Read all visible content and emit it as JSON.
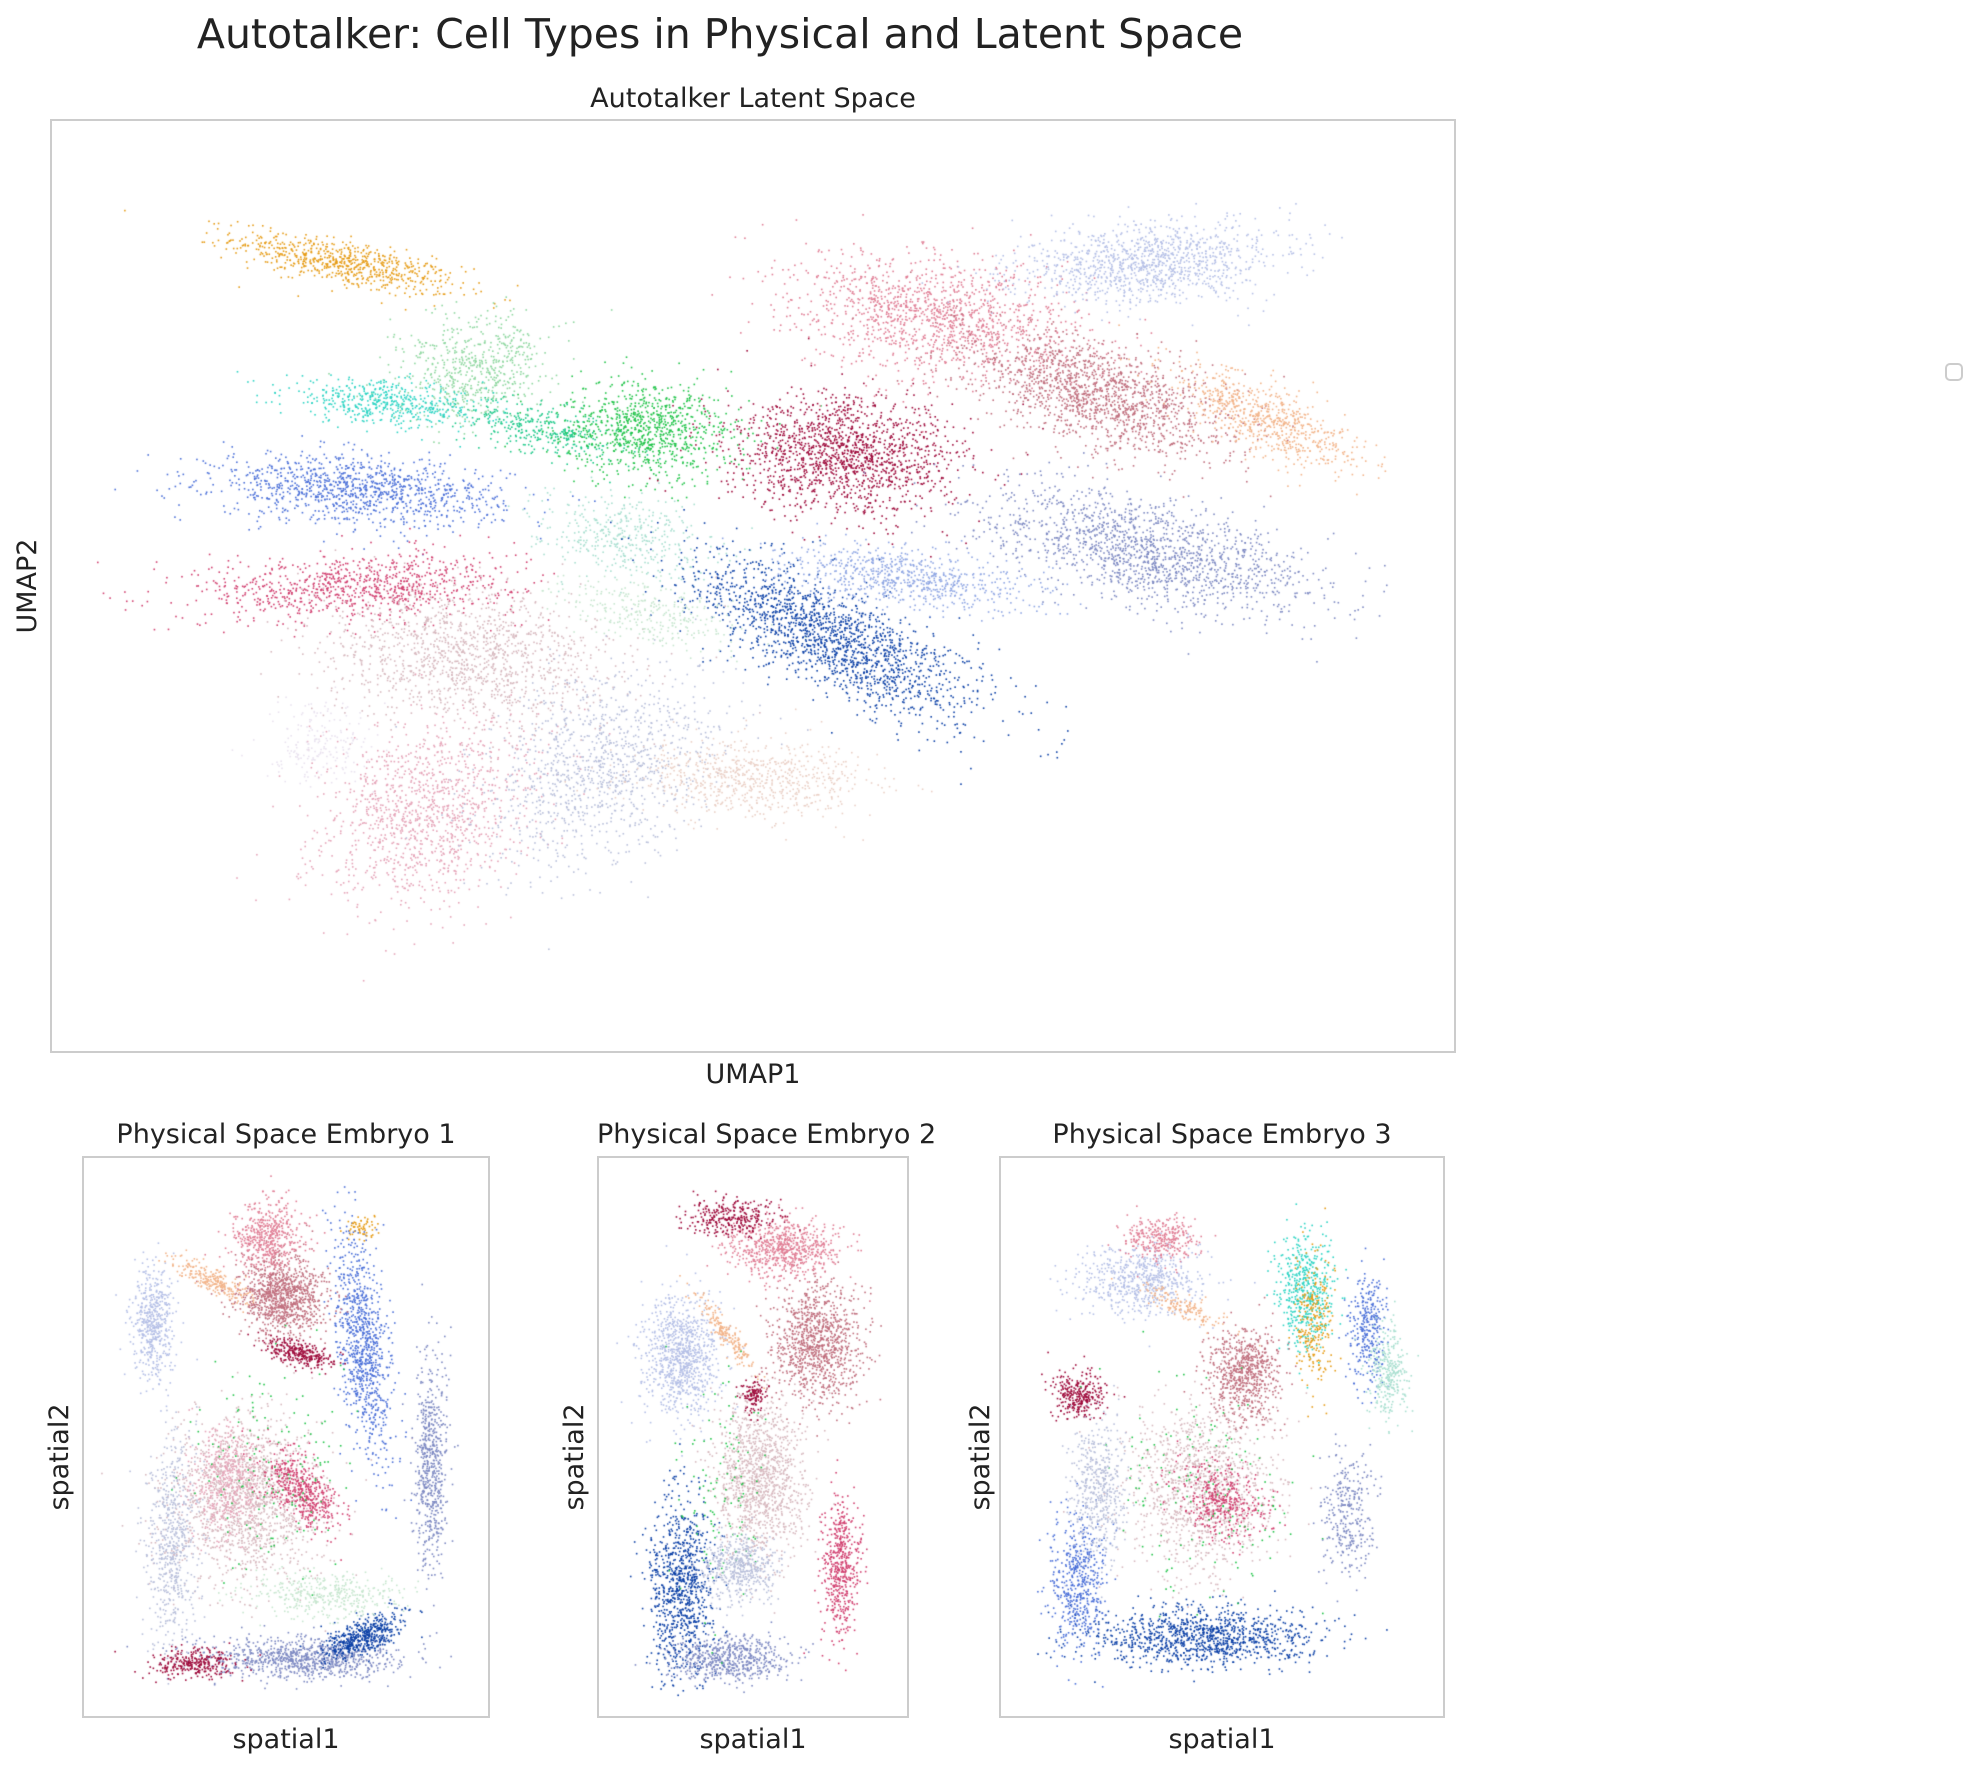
{
  "figure": {
    "title": "Autotalker: Cell Types in Physical and Latent Space"
  },
  "chart_data": [
    {
      "type": "scatter",
      "title": "Autotalker Latent Space",
      "xlabel": "UMAP1",
      "ylabel": "UMAP2",
      "grid": false,
      "ticks": false,
      "legend": "right, empty",
      "xlim": [
        0,
        100
      ],
      "ylim": [
        0,
        100
      ],
      "clusters": [
        {
          "color": "#e69c17",
          "center": [
            19,
            87
          ],
          "spread": [
            8,
            2.2
          ],
          "angle": -18,
          "count": 700
        },
        {
          "color": "#8fd7a0",
          "center": [
            29,
            75
          ],
          "spread": [
            5,
            6
          ],
          "angle": -35,
          "count": 600
        },
        {
          "color": "#1ec98a",
          "center": [
            34,
            68
          ],
          "spread": [
            6,
            2.5
          ],
          "angle": -20,
          "count": 350
        },
        {
          "color": "#22c44a",
          "center": [
            42,
            68
          ],
          "spread": [
            6,
            5
          ],
          "angle": -15,
          "count": 900
        },
        {
          "color": "#2dd4c4",
          "center": [
            22,
            71
          ],
          "spread": [
            7,
            2.2
          ],
          "angle": -8,
          "count": 500
        },
        {
          "color": "#4a6fd8",
          "center": [
            20,
            61
          ],
          "spread": [
            10,
            3.5
          ],
          "angle": -6,
          "count": 1100
        },
        {
          "color": "#d13f6f",
          "center": [
            20,
            50
          ],
          "spread": [
            11,
            3.5
          ],
          "angle": 4,
          "count": 900
        },
        {
          "color": "#a9dfd0",
          "center": [
            40,
            56
          ],
          "spread": [
            6,
            4
          ],
          "angle": -20,
          "count": 400
        },
        {
          "color": "#0a3fa6",
          "center": [
            56,
            44
          ],
          "spread": [
            12,
            4.5
          ],
          "angle": -38,
          "count": 1700
        },
        {
          "color": "#9e0a3b",
          "center": [
            57,
            65
          ],
          "spread": [
            8,
            6
          ],
          "angle": -10,
          "count": 1500
        },
        {
          "color": "#e07e95",
          "center": [
            64,
            81
          ],
          "spread": [
            10,
            6
          ],
          "angle": -15,
          "count": 1300
        },
        {
          "color": "#b4bfe6",
          "center": [
            80,
            87
          ],
          "spread": [
            9,
            4
          ],
          "angle": 8,
          "count": 1100
        },
        {
          "color": "#c06f7e",
          "center": [
            76,
            72
          ],
          "spread": [
            10,
            5
          ],
          "angle": -28,
          "count": 1500
        },
        {
          "color": "#f2b48a",
          "center": [
            89,
            69
          ],
          "spread": [
            8,
            3
          ],
          "angle": -38,
          "count": 700
        },
        {
          "color": "#7d89c2",
          "center": [
            80,
            54
          ],
          "spread": [
            12,
            5
          ],
          "angle": -20,
          "count": 1500
        },
        {
          "color": "#8fa6e3",
          "center": [
            62,
            51
          ],
          "spread": [
            9,
            3
          ],
          "angle": -12,
          "count": 700
        },
        {
          "color": "#d7b9bf",
          "center": [
            28,
            42
          ],
          "spread": [
            10,
            7
          ],
          "angle": -10,
          "count": 1300
        },
        {
          "color": "#e5a4b8",
          "center": [
            25,
            24
          ],
          "spread": [
            7,
            10
          ],
          "angle": -22,
          "count": 1200
        },
        {
          "color": "#b8bfda",
          "center": [
            38,
            29
          ],
          "spread": [
            7,
            11
          ],
          "angle": -25,
          "count": 1100
        },
        {
          "color": "#ead0c6",
          "center": [
            50,
            28
          ],
          "spread": [
            8,
            4
          ],
          "angle": -5,
          "count": 700
        },
        {
          "color": "#c7e6cf",
          "center": [
            42,
            47
          ],
          "spread": [
            6,
            3
          ],
          "angle": -20,
          "count": 300
        },
        {
          "color": "#e9e2ef",
          "center": [
            17,
            32
          ],
          "spread": [
            4,
            4
          ],
          "angle": 0,
          "count": 200
        }
      ]
    },
    {
      "type": "scatter",
      "title": "Physical Space Embryo 1",
      "xlabel": "spatial1",
      "ylabel": "spatial2",
      "grid": false,
      "ticks": false,
      "xlim": [
        0,
        100
      ],
      "ylim": [
        0,
        100
      ],
      "clusters": [
        {
          "color": "#4a6fd8",
          "center": [
            70,
            68
          ],
          "spread": [
            6,
            20
          ],
          "angle": 10,
          "count": 900
        },
        {
          "color": "#7d89c2",
          "center": [
            55,
            8
          ],
          "spread": [
            22,
            3.5
          ],
          "angle": 0,
          "count": 900
        },
        {
          "color": "#0a3fa6",
          "center": [
            70,
            12
          ],
          "spread": [
            10,
            3
          ],
          "angle": 15,
          "count": 500
        },
        {
          "color": "#9e0a3b",
          "center": [
            25,
            7
          ],
          "spread": [
            10,
            2.5
          ],
          "angle": 0,
          "count": 300
        },
        {
          "color": "#c06f7e",
          "center": [
            49,
            77
          ],
          "spread": [
            10,
            7
          ],
          "angle": 0,
          "count": 1000
        },
        {
          "color": "#e07e95",
          "center": [
            45,
            88
          ],
          "spread": [
            8,
            6
          ],
          "angle": 0,
          "count": 500
        },
        {
          "color": "#9e0a3b",
          "center": [
            53,
            66
          ],
          "spread": [
            9,
            2
          ],
          "angle": -10,
          "count": 300
        },
        {
          "color": "#d7b9bf",
          "center": [
            40,
            38
          ],
          "spread": [
            18,
            14
          ],
          "angle": 0,
          "count": 1500
        },
        {
          "color": "#e5a4b8",
          "center": [
            34,
            42
          ],
          "spread": [
            8,
            10
          ],
          "angle": 0,
          "count": 500
        },
        {
          "color": "#d13f6f",
          "center": [
            54,
            40
          ],
          "spread": [
            10,
            5
          ],
          "angle": -30,
          "count": 500
        },
        {
          "color": "#b4bfe6",
          "center": [
            15,
            72
          ],
          "spread": [
            5,
            10
          ],
          "angle": 0,
          "count": 500
        },
        {
          "color": "#7d89c2",
          "center": [
            88,
            45
          ],
          "spread": [
            4,
            18
          ],
          "angle": 0,
          "count": 600
        },
        {
          "color": "#f2b48a",
          "center": [
            30,
            80
          ],
          "spread": [
            10,
            2
          ],
          "angle": -20,
          "count": 250
        },
        {
          "color": "#22c44a",
          "center": [
            45,
            45
          ],
          "spread": [
            20,
            20
          ],
          "angle": 0,
          "count": 150
        },
        {
          "color": "#b8bfda",
          "center": [
            20,
            30
          ],
          "spread": [
            6,
            18
          ],
          "angle": 0,
          "count": 600
        },
        {
          "color": "#c7e6cf",
          "center": [
            60,
            20
          ],
          "spread": [
            18,
            4
          ],
          "angle": 0,
          "count": 400
        },
        {
          "color": "#e69c17",
          "center": [
            70,
            90
          ],
          "spread": [
            4,
            2
          ],
          "angle": 0,
          "count": 60
        }
      ]
    },
    {
      "type": "scatter",
      "title": "Physical Space Embryo 2",
      "xlabel": "spatial1",
      "ylabel": "spatial2",
      "grid": false,
      "ticks": false,
      "xlim": [
        0,
        100
      ],
      "ylim": [
        0,
        100
      ],
      "clusters": [
        {
          "color": "#0a3fa6",
          "center": [
            25,
            22
          ],
          "spread": [
            10,
            15
          ],
          "angle": 0,
          "count": 900
        },
        {
          "color": "#7d89c2",
          "center": [
            42,
            8
          ],
          "spread": [
            18,
            4
          ],
          "angle": 0,
          "count": 600
        },
        {
          "color": "#c06f7e",
          "center": [
            72,
            68
          ],
          "spread": [
            14,
            10
          ],
          "angle": 0,
          "count": 1000
        },
        {
          "color": "#e07e95",
          "center": [
            60,
            86
          ],
          "spread": [
            18,
            5
          ],
          "angle": 0,
          "count": 700
        },
        {
          "color": "#9e0a3b",
          "center": [
            42,
            92
          ],
          "spread": [
            14,
            3
          ],
          "angle": 0,
          "count": 300
        },
        {
          "color": "#b4bfe6",
          "center": [
            25,
            65
          ],
          "spread": [
            12,
            10
          ],
          "angle": 0,
          "count": 900
        },
        {
          "color": "#d7b9bf",
          "center": [
            52,
            42
          ],
          "spread": [
            14,
            14
          ],
          "angle": 0,
          "count": 1200
        },
        {
          "color": "#d13f6f",
          "center": [
            80,
            25
          ],
          "spread": [
            6,
            12
          ],
          "angle": 0,
          "count": 500
        },
        {
          "color": "#f2b48a",
          "center": [
            40,
            70
          ],
          "spread": [
            12,
            2
          ],
          "angle": -35,
          "count": 200
        },
        {
          "color": "#22c44a",
          "center": [
            40,
            40
          ],
          "spread": [
            15,
            20
          ],
          "angle": 0,
          "count": 120
        },
        {
          "color": "#b8bfda",
          "center": [
            45,
            25
          ],
          "spread": [
            12,
            6
          ],
          "angle": 0,
          "count": 500
        },
        {
          "color": "#9e0a3b",
          "center": [
            50,
            58
          ],
          "spread": [
            4,
            3
          ],
          "angle": 0,
          "count": 120
        }
      ]
    },
    {
      "type": "scatter",
      "title": "Physical Space Embryo 3",
      "xlabel": "spatial1",
      "ylabel": "spatial2",
      "grid": false,
      "ticks": false,
      "xlim": [
        0,
        100
      ],
      "ylim": [
        0,
        100
      ],
      "clusters": [
        {
          "color": "#0a3fa6",
          "center": [
            45,
            12
          ],
          "spread": [
            24,
            5
          ],
          "angle": 0,
          "count": 1100
        },
        {
          "color": "#4a6fd8",
          "center": [
            15,
            22
          ],
          "spread": [
            6,
            12
          ],
          "angle": 0,
          "count": 500
        },
        {
          "color": "#2dd4c4",
          "center": [
            70,
            78
          ],
          "spread": [
            6,
            10
          ],
          "angle": 0,
          "count": 500
        },
        {
          "color": "#e69c17",
          "center": [
            72,
            72
          ],
          "spread": [
            4,
            12
          ],
          "angle": 0,
          "count": 250
        },
        {
          "color": "#4a6fd8",
          "center": [
            85,
            70
          ],
          "spread": [
            4,
            10
          ],
          "angle": 0,
          "count": 300
        },
        {
          "color": "#a9dfd0",
          "center": [
            90,
            62
          ],
          "spread": [
            4,
            8
          ],
          "angle": 0,
          "count": 300
        },
        {
          "color": "#c06f7e",
          "center": [
            55,
            62
          ],
          "spread": [
            8,
            8
          ],
          "angle": 0,
          "count": 700
        },
        {
          "color": "#d7b9bf",
          "center": [
            45,
            40
          ],
          "spread": [
            16,
            14
          ],
          "angle": 0,
          "count": 1200
        },
        {
          "color": "#d13f6f",
          "center": [
            50,
            38
          ],
          "spread": [
            10,
            6
          ],
          "angle": -20,
          "count": 400
        },
        {
          "color": "#9e0a3b",
          "center": [
            15,
            58
          ],
          "spread": [
            6,
            4
          ],
          "angle": 0,
          "count": 300
        },
        {
          "color": "#b4bfe6",
          "center": [
            30,
            80
          ],
          "spread": [
            14,
            6
          ],
          "angle": 0,
          "count": 600
        },
        {
          "color": "#e07e95",
          "center": [
            35,
            88
          ],
          "spread": [
            8,
            4
          ],
          "angle": 0,
          "count": 300
        },
        {
          "color": "#f2b48a",
          "center": [
            40,
            75
          ],
          "spread": [
            10,
            2
          ],
          "angle": -20,
          "count": 150
        },
        {
          "color": "#22c44a",
          "center": [
            45,
            40
          ],
          "spread": [
            20,
            20
          ],
          "angle": 0,
          "count": 150
        },
        {
          "color": "#b8bfda",
          "center": [
            20,
            40
          ],
          "spread": [
            6,
            12
          ],
          "angle": 0,
          "count": 500
        },
        {
          "color": "#7d89c2",
          "center": [
            80,
            35
          ],
          "spread": [
            6,
            10
          ],
          "angle": 0,
          "count": 300
        }
      ]
    }
  ]
}
